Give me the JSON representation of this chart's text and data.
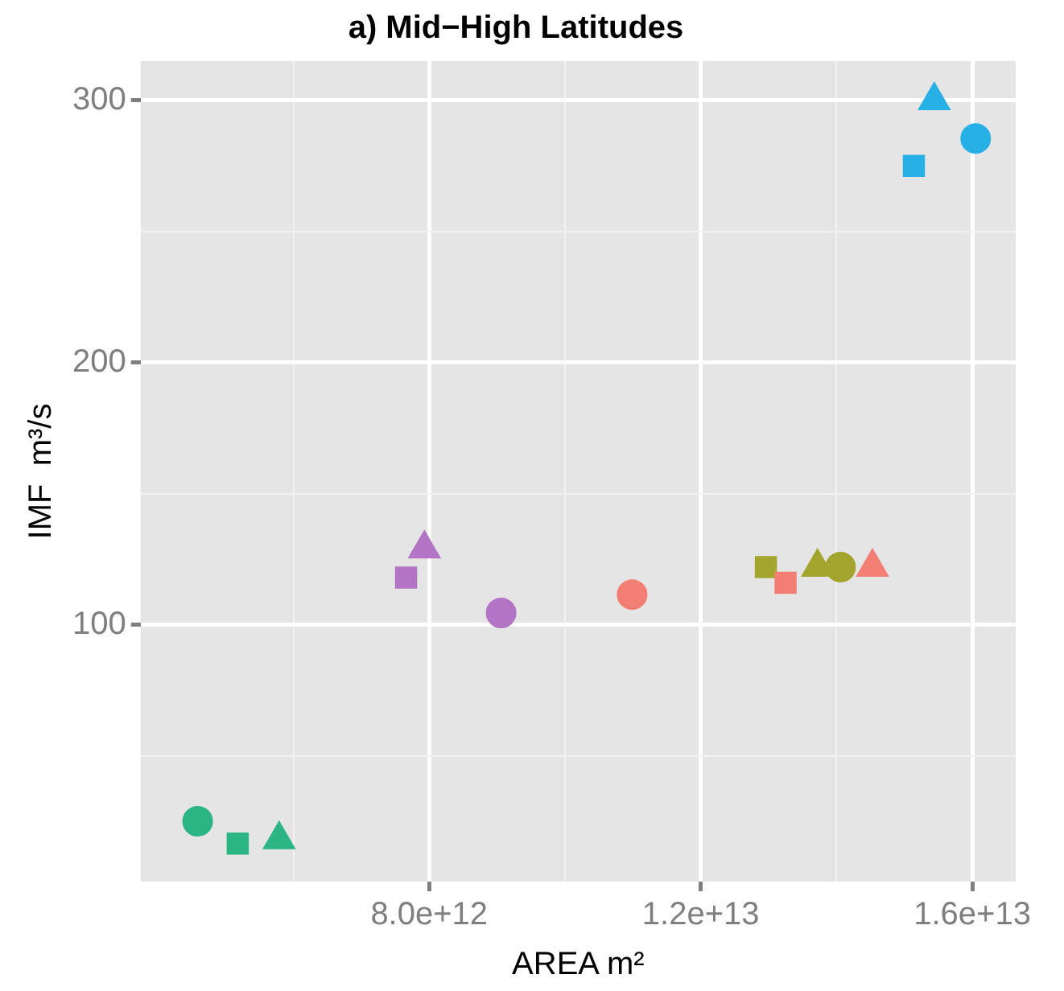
{
  "chart_data": {
    "type": "scatter",
    "title": "a) Mid−High Latitudes",
    "xlabel": "AREA m²",
    "ylabel": "IMF  m³/s",
    "xlim": [
      3750000000000,
      16640000000000
    ],
    "ylim": [
      2,
      315
    ],
    "xticks": [
      {
        "value": 6000000000000,
        "label": null
      },
      {
        "value": 8000000000000,
        "label": "8.0e+12"
      },
      {
        "value": 10000000000000,
        "label": null
      },
      {
        "value": 12000000000000,
        "label": "1.2e+13"
      },
      {
        "value": 14000000000000,
        "label": null
      },
      {
        "value": 16000000000000,
        "label": "1.6e+13"
      }
    ],
    "yticks": [
      {
        "value": 50,
        "label": null
      },
      100,
      {
        "value": 150,
        "label": null
      },
      200,
      {
        "value": 250,
        "label": null
      },
      300
    ],
    "grid": true,
    "legend": false,
    "series": [
      {
        "color": "#2bb585",
        "marker": "circle",
        "x": [
          4590000000000
        ],
        "values": [
          25
        ]
      },
      {
        "color": "#2bb585",
        "marker": "square",
        "x": [
          5180000000000
        ],
        "values": [
          16.5
        ]
      },
      {
        "color": "#2bb585",
        "marker": "triangle",
        "x": [
          5790000000000
        ],
        "values": [
          18
        ]
      },
      {
        "color": "#b474c6",
        "marker": "square",
        "x": [
          7660000000000
        ],
        "values": [
          118
        ]
      },
      {
        "color": "#b474c6",
        "marker": "triangle",
        "x": [
          7930000000000
        ],
        "values": [
          129
        ]
      },
      {
        "color": "#b474c6",
        "marker": "circle",
        "x": [
          9060000000000
        ],
        "values": [
          104.5
        ]
      },
      {
        "color": "#f27e74",
        "marker": "circle",
        "x": [
          10990000000000
        ],
        "values": [
          111.5
        ]
      },
      {
        "color": "#f27e74",
        "marker": "square",
        "x": [
          13250000000000
        ],
        "values": [
          116
        ]
      },
      {
        "color": "#f27e74",
        "marker": "triangle",
        "x": [
          14530000000000
        ],
        "values": [
          122
        ]
      },
      {
        "color": "#a3a52f",
        "marker": "square",
        "x": [
          12960000000000
        ],
        "values": [
          122
        ]
      },
      {
        "color": "#a3a52f",
        "marker": "triangle",
        "x": [
          13720000000000
        ],
        "values": [
          122
        ]
      },
      {
        "color": "#a3a52f",
        "marker": "circle",
        "x": [
          14060000000000
        ],
        "values": [
          122
        ]
      },
      {
        "color": "#27b0e6",
        "marker": "square",
        "x": [
          15140000000000
        ],
        "values": [
          275
        ]
      },
      {
        "color": "#27b0e6",
        "marker": "triangle",
        "x": [
          15440000000000
        ],
        "values": [
          300
        ]
      },
      {
        "color": "#27b0e6",
        "marker": "circle",
        "x": [
          16050000000000
        ],
        "values": [
          285.5
        ]
      }
    ]
  }
}
